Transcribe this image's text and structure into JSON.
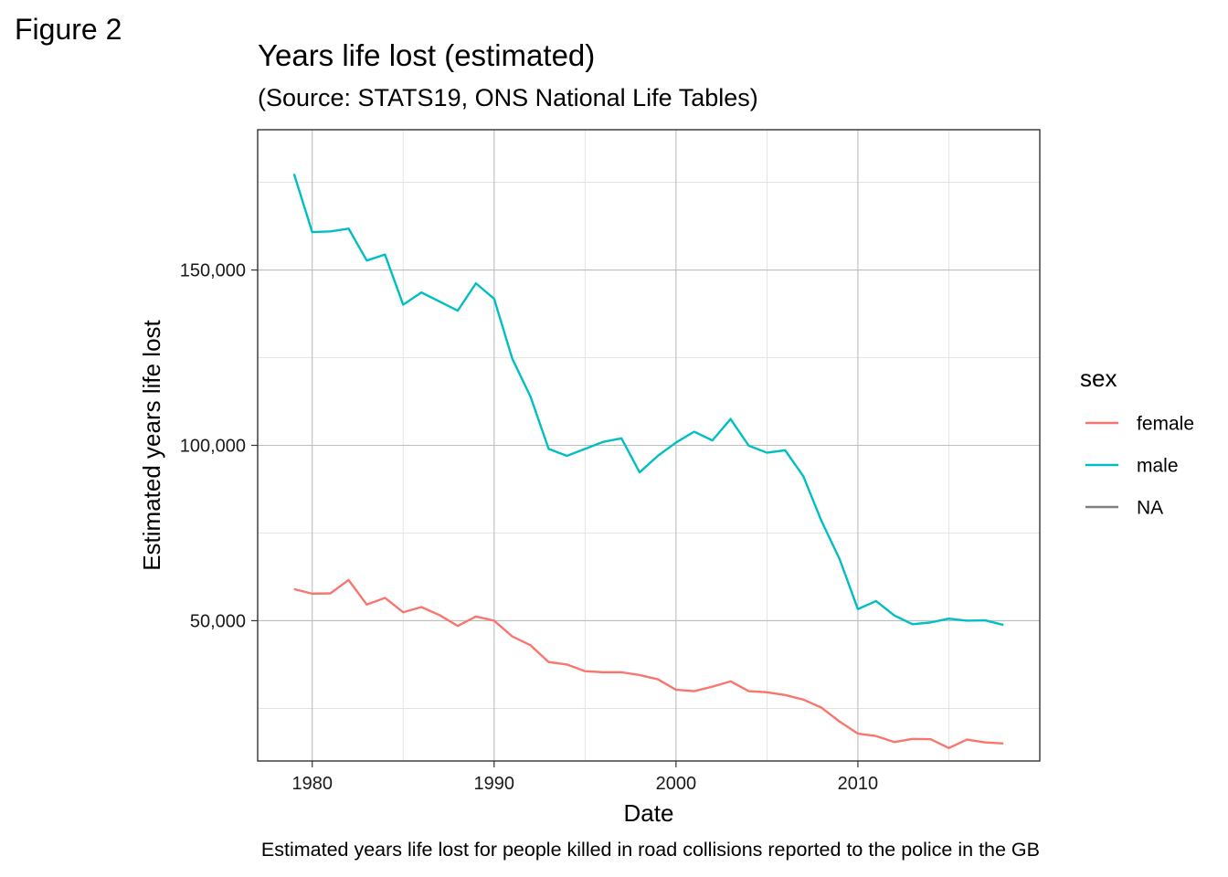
{
  "figure_label": "Figure 2",
  "chart_data": {
    "type": "line",
    "title": "Years life lost (estimated)",
    "subtitle": "(Source: STATS19, ONS National Life Tables)",
    "xlabel": "Date",
    "ylabel": "Estimated years life lost",
    "caption": "Estimated years life lost for people killed in road collisions reported to the police in the GB",
    "xlim": [
      1977,
      2020
    ],
    "ylim": [
      10000,
      190000
    ],
    "x_ticks": [
      1980,
      1990,
      2000,
      2010
    ],
    "y_ticks": [
      50000,
      100000,
      150000
    ],
    "y_tick_labels": [
      "50,000",
      "100,000",
      "150,000"
    ],
    "grid": true,
    "legend": {
      "title": "sex",
      "placement": "right",
      "entries": [
        {
          "label": "female",
          "color": "#F8766D"
        },
        {
          "label": "male",
          "color": "#00BFC4"
        },
        {
          "label": "NA",
          "color": "#7F7F7F"
        }
      ]
    },
    "x": [
      1979,
      1980,
      1981,
      1982,
      1983,
      1984,
      1985,
      1986,
      1987,
      1988,
      1989,
      1990,
      1991,
      1992,
      1993,
      1994,
      1995,
      1996,
      1997,
      1998,
      1999,
      2000,
      2001,
      2002,
      2003,
      2004,
      2005,
      2006,
      2007,
      2008,
      2009,
      2010,
      2011,
      2012,
      2013,
      2014,
      2015,
      2016,
      2017,
      2018
    ],
    "series": [
      {
        "name": "female",
        "color": "#F8766D",
        "values": [
          59000,
          57700,
          57800,
          61600,
          54600,
          56500,
          52400,
          53900,
          51600,
          48500,
          51200,
          50000,
          45500,
          43000,
          38200,
          37500,
          35600,
          35300,
          35300,
          34500,
          33300,
          30300,
          29900,
          31200,
          32700,
          29900,
          29600,
          28800,
          27500,
          25200,
          21200,
          17800,
          17100,
          15400,
          16300,
          16200,
          13700,
          16100,
          15300,
          15000
        ]
      },
      {
        "name": "male",
        "color": "#00BFC4",
        "values": [
          177400,
          160800,
          161000,
          161800,
          152700,
          154400,
          140100,
          143600,
          141000,
          138400,
          146200,
          141800,
          124700,
          113900,
          99000,
          97000,
          99000,
          101000,
          102000,
          92300,
          97000,
          100800,
          103900,
          101400,
          107500,
          99900,
          97900,
          98600,
          91200,
          78400,
          67500,
          53300,
          55600,
          51500,
          49000,
          49500,
          50600,
          50000,
          50100,
          48800
        ]
      }
    ]
  }
}
